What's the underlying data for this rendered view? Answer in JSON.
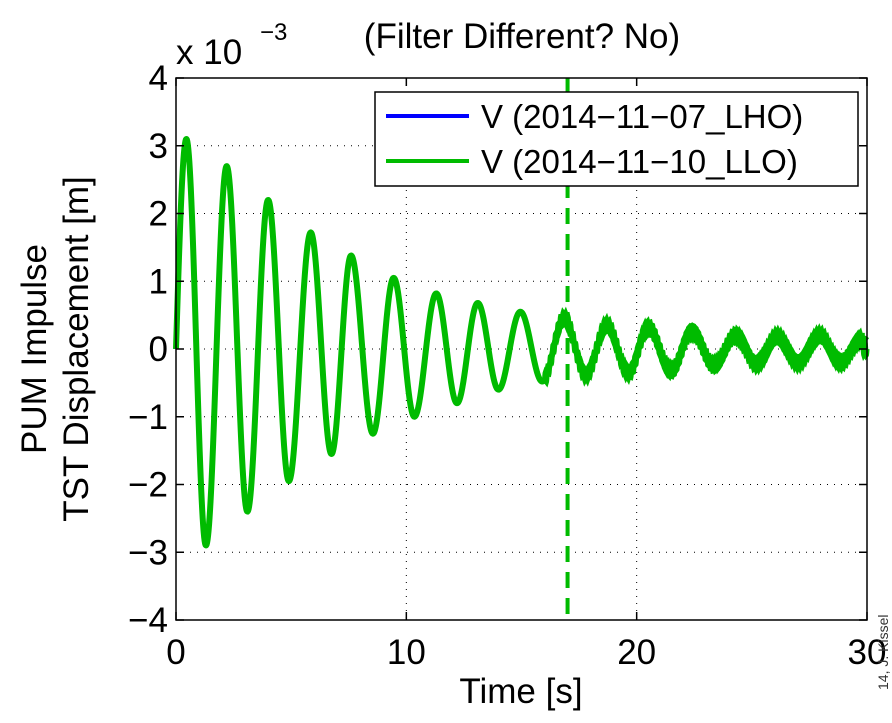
{
  "chart_data": {
    "type": "line",
    "title": "(Filter Different? No)",
    "xlabel": "Time [s]",
    "ylabel_lines": [
      "PUM Impulse",
      "TST Displacement [m]"
    ],
    "y_exponent_label": "x 10",
    "y_exponent_power": "−3",
    "xlim": [
      0,
      30
    ],
    "ylim": [
      -4,
      4
    ],
    "x_ticks": [
      0,
      10,
      20,
      30
    ],
    "x_tick_labels": [
      "0",
      "10",
      "20",
      "30"
    ],
    "y_ticks": [
      -4,
      -3,
      -2,
      -1,
      0,
      1,
      2,
      3,
      4
    ],
    "y_tick_labels": [
      "−4",
      "−3",
      "−2",
      "−1",
      "0",
      "1",
      "2",
      "3",
      "4"
    ],
    "grid": true,
    "legend_position": "top-right",
    "vertical_marker_x": 17,
    "series": [
      {
        "name": "V (2014−11−07_LHO)",
        "color": "#0000ff",
        "peaks": [
          [
            0.45,
            3.1
          ],
          [
            1.3,
            -2.9
          ],
          [
            2.2,
            2.7
          ],
          [
            3.1,
            -2.4
          ],
          [
            4.0,
            2.2
          ],
          [
            4.9,
            -1.95
          ],
          [
            5.85,
            1.72
          ],
          [
            6.75,
            -1.55
          ],
          [
            7.6,
            1.38
          ],
          [
            8.55,
            -1.25
          ],
          [
            9.45,
            1.05
          ],
          [
            10.35,
            -1.0
          ],
          [
            11.3,
            0.82
          ],
          [
            12.2,
            -0.8
          ],
          [
            13.1,
            0.68
          ],
          [
            14.0,
            -0.6
          ],
          [
            14.95,
            0.55
          ],
          [
            15.9,
            -0.48
          ],
          [
            16.85,
            0.45
          ],
          [
            17.8,
            -0.38
          ],
          [
            18.7,
            0.35
          ],
          [
            19.65,
            -0.35
          ],
          [
            20.5,
            0.32
          ],
          [
            21.5,
            -0.32
          ],
          [
            22.4,
            0.26
          ],
          [
            23.35,
            -0.24
          ],
          [
            24.3,
            0.2
          ],
          [
            25.2,
            -0.22
          ],
          [
            26.1,
            0.18
          ],
          [
            27.0,
            -0.2
          ],
          [
            27.95,
            0.2
          ],
          [
            28.85,
            -0.2
          ],
          [
            29.8,
            0.16
          ]
        ]
      },
      {
        "name": "V (2014−11−10_LLO)",
        "color": "#00bb00",
        "peaks": [
          [
            0.45,
            3.1
          ],
          [
            1.3,
            -2.9
          ],
          [
            2.2,
            2.7
          ],
          [
            3.1,
            -2.4
          ],
          [
            4.0,
            2.2
          ],
          [
            4.9,
            -1.95
          ],
          [
            5.85,
            1.72
          ],
          [
            6.75,
            -1.55
          ],
          [
            7.6,
            1.38
          ],
          [
            8.55,
            -1.25
          ],
          [
            9.45,
            1.05
          ],
          [
            10.35,
            -1.0
          ],
          [
            11.3,
            0.82
          ],
          [
            12.2,
            -0.8
          ],
          [
            13.1,
            0.68
          ],
          [
            14.0,
            -0.6
          ],
          [
            14.95,
            0.55
          ],
          [
            15.9,
            -0.48
          ],
          [
            16.85,
            0.45
          ],
          [
            17.8,
            -0.38
          ],
          [
            18.7,
            0.35
          ],
          [
            19.65,
            -0.35
          ],
          [
            20.5,
            0.32
          ],
          [
            21.5,
            -0.32
          ],
          [
            22.4,
            0.26
          ],
          [
            23.35,
            -0.24
          ],
          [
            24.3,
            0.2
          ],
          [
            25.2,
            -0.22
          ],
          [
            26.1,
            0.18
          ],
          [
            27.0,
            -0.2
          ],
          [
            27.95,
            0.2
          ],
          [
            28.85,
            -0.2
          ],
          [
            29.8,
            0.16
          ]
        ]
      }
    ]
  },
  "watermark": "14, J. Kissel"
}
